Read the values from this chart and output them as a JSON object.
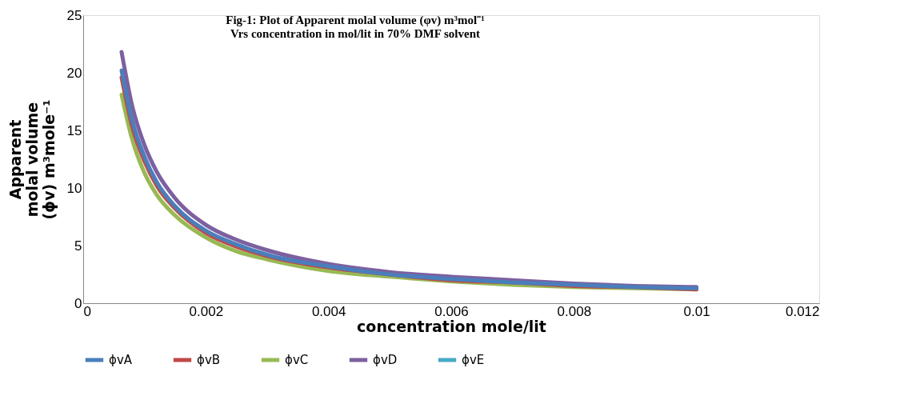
{
  "chart_data": {
    "type": "line",
    "title": "Fig-1: Plot of Apparent molal volume (φv) m³mol⁻¹\nVrs concentration in  mol/lit in 70%  DMF solvent",
    "xlabel": "concentration  mole/lit",
    "ylabel": "Apparent\nmolal volume\n(ϕv) m³mole⁻¹",
    "x": [
      0.000626,
      0.0008,
      0.001,
      0.0012,
      0.0015,
      0.002,
      0.0025,
      0.003,
      0.004,
      0.005,
      0.006,
      0.007,
      0.008,
      0.009,
      0.01
    ],
    "series": [
      {
        "name": "ϕvA",
        "color": "#4a7ebb",
        "values": [
          20.2,
          15.8,
          12.7,
          10.5,
          8.4,
          6.3,
          5.1,
          4.2,
          3.2,
          2.5,
          2.1,
          1.8,
          1.6,
          1.4,
          1.3
        ]
      },
      {
        "name": "ϕvB",
        "color": "#be4b48",
        "values": [
          19.6,
          15.3,
          12.3,
          10.2,
          8.2,
          6.1,
          4.9,
          4.1,
          3.1,
          2.5,
          2.0,
          1.8,
          1.5,
          1.4,
          1.2
        ]
      },
      {
        "name": "ϕvC",
        "color": "#98b954",
        "values": [
          18.1,
          14.2,
          11.3,
          9.4,
          7.6,
          5.7,
          4.5,
          3.8,
          2.8,
          2.3,
          1.9,
          1.6,
          1.4,
          1.3,
          1.2
        ]
      },
      {
        "name": "ϕvD",
        "color": "#7d60a0",
        "values": [
          21.8,
          17.1,
          13.7,
          11.4,
          9.1,
          6.8,
          5.5,
          4.6,
          3.4,
          2.7,
          2.3,
          2.0,
          1.7,
          1.5,
          1.4
        ]
      },
      {
        "name": "ϕvE",
        "color": "#46aac5",
        "values": [
          null,
          null,
          null,
          null,
          null,
          null,
          null,
          null,
          null,
          null,
          null,
          null,
          null,
          null,
          null
        ]
      }
    ],
    "xlim": [
      0,
      0.012
    ],
    "xticks": [
      0,
      0.002,
      0.004,
      0.006,
      0.008,
      0.01,
      0.012
    ],
    "ylim": [
      0,
      25
    ],
    "yticks": [
      0,
      5,
      10,
      15,
      20,
      25
    ],
    "grid": false,
    "legend": "bottom",
    "marker": "none",
    "line_style": "solid"
  }
}
